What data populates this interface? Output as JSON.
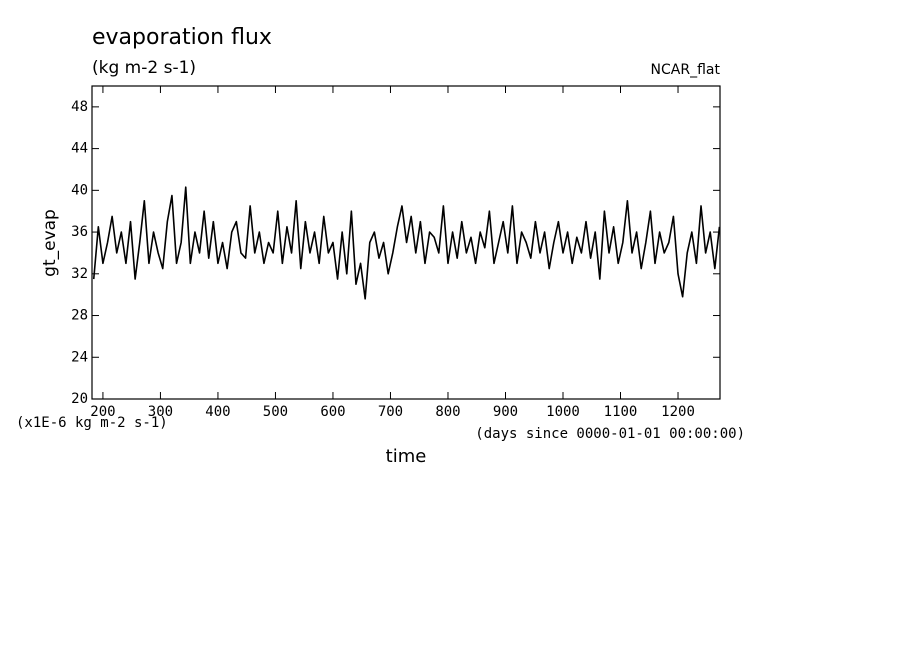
{
  "chart_data": {
    "type": "line",
    "title": "evaporation flux",
    "subtitle": "(kg m-2 s-1)",
    "annotation": "NCAR_flat",
    "ylabel": "gt_evap",
    "yunits": "(x1E-6 kg m-2 s-1)",
    "xlabel": "time",
    "xunits": "(days since 0000-01-01 00:00:00)",
    "xlim": [
      181,
      1273
    ],
    "ylim": [
      20,
      50
    ],
    "xticks": [
      200,
      300,
      400,
      500,
      600,
      700,
      800,
      900,
      1000,
      1100,
      1200
    ],
    "yticks": [
      20,
      24,
      28,
      32,
      36,
      40,
      44,
      48
    ],
    "grid": false,
    "x": [
      184,
      192,
      200,
      208,
      216,
      224,
      232,
      240,
      248,
      256,
      264,
      272,
      280,
      288,
      296,
      304,
      312,
      320,
      328,
      336,
      344,
      352,
      360,
      368,
      376,
      384,
      392,
      400,
      408,
      416,
      424,
      432,
      440,
      448,
      456,
      464,
      472,
      480,
      488,
      496,
      504,
      512,
      520,
      528,
      536,
      544,
      552,
      560,
      568,
      576,
      584,
      592,
      600,
      608,
      616,
      624,
      632,
      640,
      648,
      656,
      664,
      672,
      680,
      688,
      696,
      704,
      712,
      720,
      728,
      736,
      744,
      752,
      760,
      768,
      776,
      784,
      792,
      800,
      808,
      816,
      824,
      832,
      840,
      848,
      856,
      864,
      872,
      880,
      888,
      896,
      904,
      912,
      920,
      928,
      936,
      944,
      952,
      960,
      968,
      976,
      984,
      992,
      1000,
      1008,
      1016,
      1024,
      1032,
      1040,
      1048,
      1056,
      1064,
      1072,
      1080,
      1088,
      1096,
      1104,
      1112,
      1120,
      1128,
      1136,
      1144,
      1152,
      1160,
      1168,
      1176,
      1184,
      1192,
      1200,
      1208,
      1216,
      1224,
      1232,
      1240,
      1248,
      1256,
      1264,
      1272
    ],
    "series": [
      {
        "name": "gt_evap",
        "color": "#000000",
        "values": [
          31.5,
          36.5,
          33,
          35,
          37.5,
          34,
          36,
          33,
          37,
          31.5,
          35,
          39,
          33,
          36,
          34,
          32.5,
          37,
          39.5,
          33,
          35,
          40.3,
          33,
          36,
          34,
          38,
          33.5,
          37,
          33,
          35,
          32.5,
          36,
          37,
          34,
          33.5,
          38.5,
          34,
          36,
          33,
          35,
          34,
          38,
          33,
          36.5,
          34,
          39,
          32.5,
          37,
          34,
          36,
          33,
          37.5,
          34,
          35,
          31.5,
          36,
          32,
          38,
          31,
          33,
          29.6,
          35,
          36,
          33.5,
          35,
          32,
          34,
          36.5,
          38.5,
          35,
          37.5,
          34,
          37,
          33,
          36,
          35.5,
          34,
          38.5,
          33,
          36,
          33.5,
          37,
          34,
          35.5,
          33,
          36,
          34.5,
          38,
          33,
          35,
          37,
          34,
          38.5,
          33,
          36,
          35,
          33.5,
          37,
          34,
          36,
          32.5,
          35,
          37,
          34,
          36,
          33,
          35.5,
          34,
          37,
          33.5,
          36,
          31.5,
          38,
          34,
          36.5,
          33,
          35,
          39,
          34,
          36,
          32.5,
          35,
          38,
          33,
          36,
          34,
          35,
          37.5,
          32,
          29.8,
          34,
          36,
          33,
          38.5,
          34,
          36,
          32.5,
          36.5
        ]
      }
    ]
  }
}
